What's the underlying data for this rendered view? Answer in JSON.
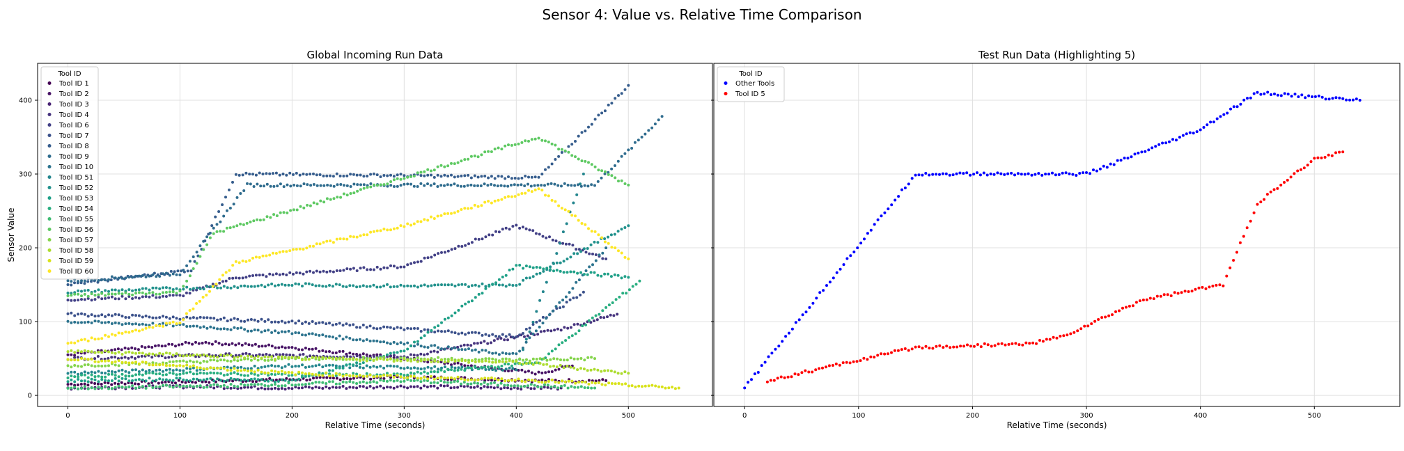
{
  "figure": {
    "suptitle": "Sensor 4: Value vs. Relative Time Comparison"
  },
  "chart_data": [
    {
      "type": "scatter",
      "title": "Global Incoming Run Data",
      "xlabel": "Relative Time (seconds)",
      "ylabel": "Sensor Value",
      "xlim": [
        -27,
        575
      ],
      "ylim": [
        -15,
        450
      ],
      "xticks": [
        0,
        100,
        200,
        300,
        400,
        500
      ],
      "yticks": [
        0,
        100,
        200,
        300,
        400
      ],
      "grid": true,
      "legend": {
        "title": "Tool ID",
        "placement": "top-left"
      },
      "series": [
        {
          "name": "Tool ID 1",
          "color": "#440154",
          "points": [
            [
              0,
              15
            ],
            [
              150,
              20
            ],
            [
              300,
              25
            ],
            [
              420,
              20
            ],
            [
              480,
              20
            ]
          ]
        },
        {
          "name": "Tool ID 2",
          "color": "#471365",
          "points": [
            [
              0,
              55
            ],
            [
              120,
              72
            ],
            [
              200,
              65
            ],
            [
              300,
              50
            ],
            [
              420,
              30
            ],
            [
              450,
              40
            ]
          ]
        },
        {
          "name": "Tool ID 3",
          "color": "#482374",
          "points": [
            [
              0,
              10
            ],
            [
              100,
              12
            ],
            [
              200,
              10
            ],
            [
              300,
              12
            ],
            [
              440,
              10
            ]
          ]
        },
        {
          "name": "Tool ID 4",
          "color": "#46337e",
          "points": [
            [
              0,
              50
            ],
            [
              150,
              55
            ],
            [
              300,
              52
            ],
            [
              440,
              90
            ],
            [
              490,
              110
            ]
          ]
        },
        {
          "name": "Tool ID 6",
          "color": "#424086",
          "points": [
            [
              0,
              130
            ],
            [
              100,
              135
            ],
            [
              150,
              160
            ],
            [
              300,
              175
            ],
            [
              400,
              230
            ],
            [
              480,
              185
            ]
          ]
        },
        {
          "name": "Tool ID 7",
          "color": "#3b518b",
          "points": [
            [
              0,
              110
            ],
            [
              100,
              105
            ],
            [
              200,
              100
            ],
            [
              300,
              90
            ],
            [
              400,
              80
            ],
            [
              460,
              140
            ]
          ]
        },
        {
          "name": "Tool ID 8",
          "color": "#365d8d",
          "points": [
            [
              0,
              150
            ],
            [
              110,
              170
            ],
            [
              150,
              300
            ],
            [
              300,
              298
            ],
            [
              420,
              295
            ],
            [
              500,
              420
            ]
          ]
        },
        {
          "name": "Tool ID 9",
          "color": "#2f6c8e",
          "points": [
            [
              0,
              155
            ],
            [
              100,
              165
            ],
            [
              160,
              285
            ],
            [
              300,
              285
            ],
            [
              470,
              285
            ],
            [
              530,
              378
            ]
          ]
        },
        {
          "name": "Tool ID 10",
          "color": "#2c738e",
          "points": [
            [
              0,
              100
            ],
            [
              100,
              95
            ],
            [
              200,
              85
            ],
            [
              300,
              70
            ],
            [
              400,
              55
            ],
            [
              480,
              200
            ]
          ]
        },
        {
          "name": "Tool ID 51",
          "color": "#24868e",
          "points": [
            [
              0,
              30
            ],
            [
              100,
              35
            ],
            [
              200,
              40
            ],
            [
              300,
              38
            ],
            [
              400,
              35
            ],
            [
              460,
              300
            ]
          ]
        },
        {
          "name": "Tool ID 52",
          "color": "#21918c",
          "points": [
            [
              0,
              140
            ],
            [
              100,
              145
            ],
            [
              200,
              150
            ],
            [
              300,
              148
            ],
            [
              400,
              150
            ],
            [
              500,
              230
            ]
          ]
        },
        {
          "name": "Tool ID 53",
          "color": "#1fa088",
          "points": [
            [
              0,
              20
            ],
            [
              100,
              22
            ],
            [
              200,
              20
            ],
            [
              300,
              60
            ],
            [
              400,
              175
            ],
            [
              500,
              160
            ]
          ]
        },
        {
          "name": "Tool ID 54",
          "color": "#28ae80",
          "points": [
            [
              0,
              25
            ],
            [
              100,
              30
            ],
            [
              200,
              28
            ],
            [
              300,
              28
            ],
            [
              420,
              45
            ],
            [
              510,
              155
            ]
          ]
        },
        {
          "name": "Tool ID 55",
          "color": "#3fbc73",
          "points": [
            [
              0,
              10
            ],
            [
              100,
              12
            ],
            [
              200,
              15
            ],
            [
              300,
              20
            ],
            [
              470,
              10
            ]
          ]
        },
        {
          "name": "Tool ID 56",
          "color": "#5ec962",
          "points": [
            [
              0,
              135
            ],
            [
              100,
              140
            ],
            [
              130,
              220
            ],
            [
              300,
              295
            ],
            [
              420,
              350
            ],
            [
              500,
              285
            ]
          ]
        },
        {
          "name": "Tool ID 57",
          "color": "#84d44b",
          "points": [
            [
              0,
              40
            ],
            [
              100,
              45
            ],
            [
              200,
              50
            ],
            [
              300,
              50
            ],
            [
              400,
              48
            ],
            [
              470,
              50
            ]
          ]
        },
        {
          "name": "Tool ID 58",
          "color": "#addc30",
          "points": [
            [
              0,
              60
            ],
            [
              100,
              55
            ],
            [
              200,
              50
            ],
            [
              300,
              48
            ],
            [
              400,
              45
            ],
            [
              500,
              30
            ]
          ]
        },
        {
          "name": "Tool ID 59",
          "color": "#d8e219",
          "points": [
            [
              0,
              50
            ],
            [
              100,
              40
            ],
            [
              200,
              30
            ],
            [
              300,
              25
            ],
            [
              420,
              20
            ],
            [
              545,
              10
            ]
          ]
        },
        {
          "name": "Tool ID 60",
          "color": "#fde725",
          "points": [
            [
              0,
              70
            ],
            [
              100,
              100
            ],
            [
              150,
              180
            ],
            [
              300,
              230
            ],
            [
              420,
              280
            ],
            [
              500,
              185
            ]
          ]
        }
      ]
    },
    {
      "type": "scatter",
      "title": "Test Run Data (Highlighting 5)",
      "xlabel": "Relative Time (seconds)",
      "ylabel": "",
      "xlim": [
        -27,
        575
      ],
      "ylim": [
        -15,
        450
      ],
      "xticks": [
        0,
        100,
        200,
        300,
        400,
        500
      ],
      "yticks": [
        0,
        100,
        200,
        300,
        400
      ],
      "grid": true,
      "legend": {
        "title": "Tool ID",
        "placement": "top-left"
      },
      "series": [
        {
          "name": "Other Tools",
          "color": "#0000ff",
          "points": [
            [
              0,
              10
            ],
            [
              150,
              300
            ],
            [
              300,
              300
            ],
            [
              400,
              360
            ],
            [
              450,
              410
            ],
            [
              540,
              400
            ]
          ]
        },
        {
          "name": "Tool ID 5",
          "color": "#ff0000",
          "points": [
            [
              20,
              20
            ],
            [
              150,
              65
            ],
            [
              250,
              70
            ],
            [
              280,
              80
            ],
            [
              350,
              130
            ],
            [
              420,
              150
            ],
            [
              450,
              260
            ],
            [
              500,
              320
            ],
            [
              525,
              330
            ]
          ]
        }
      ]
    }
  ]
}
